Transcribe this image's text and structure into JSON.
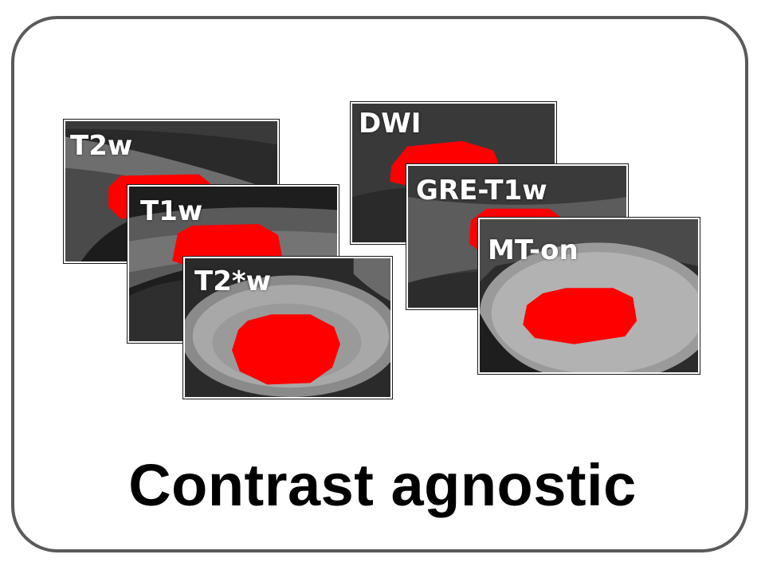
{
  "tiles": {
    "t2w": {
      "label": "T2w"
    },
    "t1w": {
      "label": "T1w"
    },
    "t2star": {
      "label": "T2*w"
    },
    "dwi": {
      "label": "DWI"
    },
    "gre_t1w": {
      "label": "GRE-T1w"
    },
    "mt_on": {
      "label": "MT-on"
    }
  },
  "caption": "Contrast agnostic",
  "colors": {
    "frame_border": "#5a5a5a",
    "segmentation_overlay": "#ff0000",
    "label_text": "#ffffff",
    "caption_text": "#000000"
  }
}
